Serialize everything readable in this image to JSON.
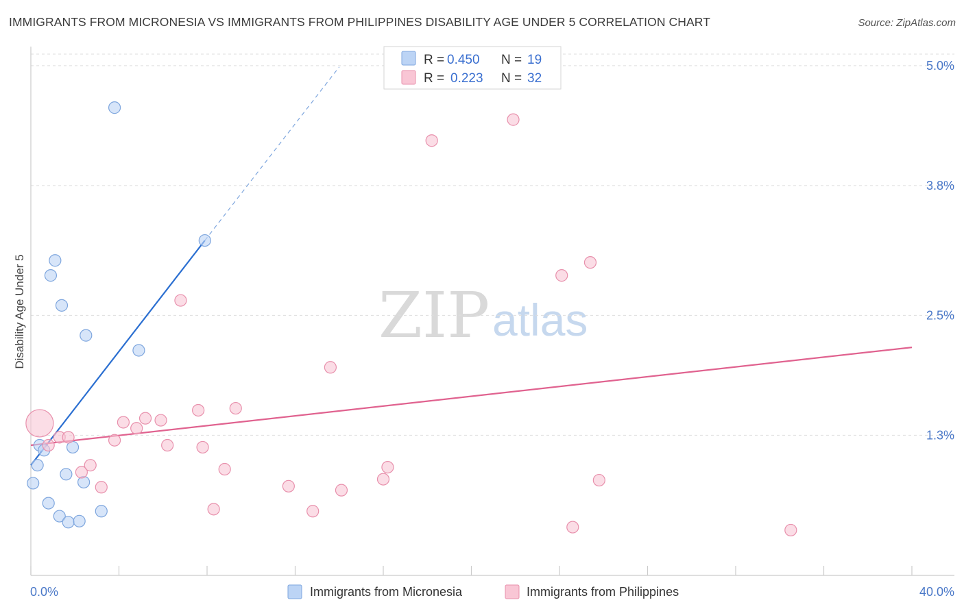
{
  "title": "IMMIGRANTS FROM MICRONESIA VS IMMIGRANTS FROM PHILIPPINES DISABILITY AGE UNDER 5 CORRELATION CHART",
  "source": "Source: ZipAtlas.com",
  "watermark": {
    "zip": "ZIP",
    "atlas": "atlas"
  },
  "legend": {
    "rows": [
      {
        "r_label": "R = ",
        "r_value": "0.450",
        "n_label": "N = ",
        "n_value": "19"
      },
      {
        "r_label": "R = ",
        "r_value": "0.223",
        "n_label": "N = ",
        "n_value": "32"
      }
    ]
  },
  "bottom_legend": [
    "Immigrants from Micronesia",
    "Immigrants from Philippines"
  ],
  "colors": {
    "micronesia_fill": "#bcd4f5",
    "micronesia_stroke": "#7ea6de",
    "micronesia_line": "#2b6fd1",
    "philippines_fill": "#f9c6d5",
    "philippines_stroke": "#e890ac",
    "philippines_line": "#e0628f",
    "value_text": "#3a6fd0",
    "grid": "#dddddd"
  },
  "chart_data": {
    "type": "scatter",
    "title": "IMMIGRANTS FROM MICRONESIA VS IMMIGRANTS FROM PHILIPPINES DISABILITY AGE UNDER 5 CORRELATION CHART",
    "xlabel": "",
    "ylabel": "Disability Age Under 5",
    "xlim": [
      0,
      40
    ],
    "ylim": [
      0,
      5.15
    ],
    "x_tick_labels": [
      "0.0%",
      "40.0%"
    ],
    "y_ticks": [
      1.3,
      2.5,
      3.8,
      5.0
    ],
    "y_tick_labels": [
      "1.3%",
      "2.5%",
      "3.8%",
      "5.0%"
    ],
    "grid": true,
    "legend_position": "top-center",
    "series": [
      {
        "name": "Immigrants from Micronesia",
        "R": 0.45,
        "N": 19,
        "points": [
          [
            0.1,
            0.82,
            1
          ],
          [
            0.3,
            1.0,
            1
          ],
          [
            0.4,
            1.2,
            1
          ],
          [
            0.6,
            1.15,
            1
          ],
          [
            0.8,
            0.62,
            1
          ],
          [
            0.9,
            2.9,
            1
          ],
          [
            1.1,
            3.05,
            1
          ],
          [
            1.3,
            0.49,
            1
          ],
          [
            1.4,
            2.6,
            1
          ],
          [
            1.6,
            0.91,
            1
          ],
          [
            1.7,
            0.43,
            1
          ],
          [
            1.9,
            1.18,
            1
          ],
          [
            2.2,
            0.44,
            1
          ],
          [
            2.4,
            0.83,
            1
          ],
          [
            2.5,
            2.3,
            1
          ],
          [
            3.2,
            0.54,
            1
          ],
          [
            3.8,
            4.58,
            1
          ],
          [
            4.9,
            2.15,
            1
          ],
          [
            7.9,
            3.25,
            1
          ]
        ],
        "trend": {
          "x0": 0,
          "y0": 1.0,
          "x1": 7.9,
          "y1": 3.25,
          "dash_to_x": 14.0
        }
      },
      {
        "name": "Immigrants from Philippines",
        "R": 0.223,
        "N": 32,
        "points": [
          [
            0.4,
            1.42,
            3
          ],
          [
            0.8,
            1.2,
            1
          ],
          [
            1.3,
            1.28,
            1
          ],
          [
            1.7,
            1.28,
            1
          ],
          [
            2.3,
            0.93,
            1
          ],
          [
            2.7,
            1.0,
            1
          ],
          [
            3.2,
            0.78,
            1
          ],
          [
            3.8,
            1.25,
            1
          ],
          [
            4.2,
            1.43,
            1
          ],
          [
            4.8,
            1.37,
            1
          ],
          [
            5.2,
            1.47,
            1
          ],
          [
            5.9,
            1.45,
            1
          ],
          [
            6.2,
            1.2,
            1
          ],
          [
            6.8,
            2.65,
            1
          ],
          [
            7.6,
            1.55,
            1
          ],
          [
            7.8,
            1.18,
            1
          ],
          [
            8.3,
            0.56,
            1
          ],
          [
            8.8,
            0.96,
            1
          ],
          [
            9.3,
            1.57,
            1
          ],
          [
            11.7,
            0.79,
            1
          ],
          [
            12.8,
            0.54,
            1
          ],
          [
            13.6,
            1.98,
            1
          ],
          [
            14.1,
            0.75,
            1
          ],
          [
            16.0,
            0.86,
            1
          ],
          [
            16.2,
            0.98,
            1
          ],
          [
            18.2,
            4.25,
            1
          ],
          [
            21.9,
            4.46,
            1
          ],
          [
            24.1,
            2.9,
            1
          ],
          [
            24.6,
            0.38,
            1
          ],
          [
            25.4,
            3.03,
            1
          ],
          [
            25.8,
            0.85,
            1
          ],
          [
            34.5,
            0.35,
            1
          ]
        ],
        "trend": {
          "x0": 0,
          "y0": 1.2,
          "x1": 40,
          "y1": 2.18
        }
      }
    ]
  }
}
